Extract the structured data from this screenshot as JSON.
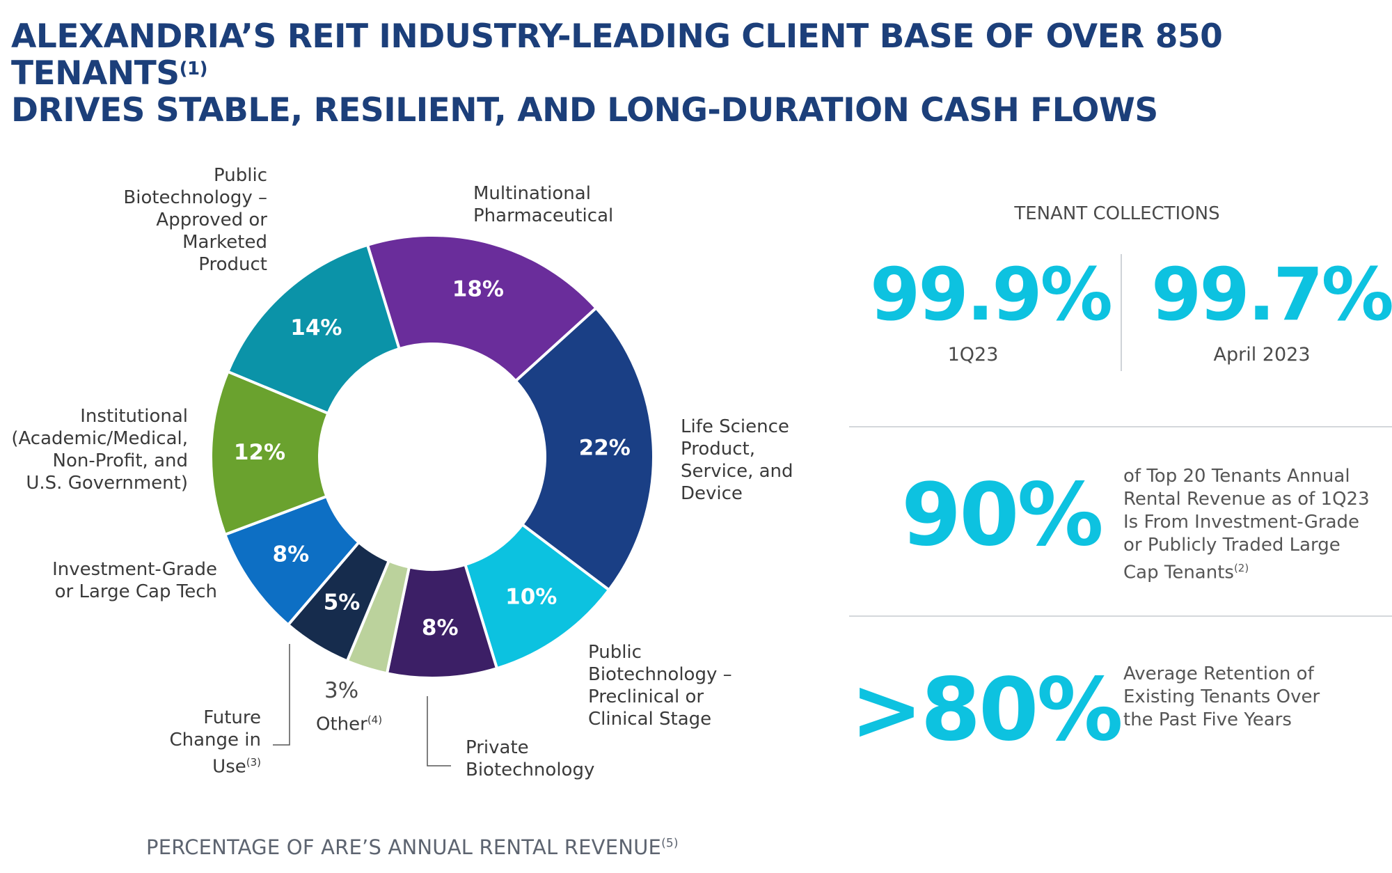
{
  "title": {
    "line1": "ALEXANDRIA’S REIT INDUSTRY-LEADING CLIENT BASE OF OVER 850 TENANTS",
    "line1_sup": "(1)",
    "line2": "DRIVES STABLE, RESILIENT, AND LONG-DURATION CASH FLOWS"
  },
  "chart_data": {
    "type": "pie",
    "title": "PERCENTAGE OF ARE’S ANNUAL RENTAL REVENUE",
    "title_sup": "(5)",
    "start_angle_deg": -17,
    "slices": [
      {
        "name": "Multinational Pharmaceutical",
        "value": 18,
        "label": "18%",
        "color": "#6a2d9b"
      },
      {
        "name": "Life Science Product, Service, and Device",
        "value": 22,
        "label": "22%",
        "color": "#1a3f85"
      },
      {
        "name": "Public Biotechnology – Preclinical or Clinical Stage",
        "value": 10,
        "label": "10%",
        "color": "#0cc2e0"
      },
      {
        "name": "Private Biotechnology",
        "value": 8,
        "label": "8%",
        "color": "#3c1f66"
      },
      {
        "name": "Other",
        "value": 3,
        "label": "3%",
        "color": "#bbd29c"
      },
      {
        "name": "Future Change in Use",
        "value": 5,
        "label": "5%",
        "color": "#162c4d"
      },
      {
        "name": "Investment-Grade or Large Cap Tech",
        "value": 8,
        "label": "8%",
        "color": "#0d6fc4"
      },
      {
        "name": "Institutional (Academic/Medical, Non-Profit, and U.S. Government)",
        "value": 12,
        "label": "12%",
        "color": "#6aa22e"
      },
      {
        "name": "Public Biotechnology – Approved or Marketed Product",
        "value": 14,
        "label": "14%",
        "color": "#0b93a8"
      }
    ]
  },
  "categories": {
    "multinational": [
      "Multinational",
      "Pharmaceutical"
    ],
    "life_science": [
      "Life Science",
      "Product,",
      "Service, and",
      "Device"
    ],
    "public_bio_preclinical": [
      "Public",
      "Biotechnology –",
      "Preclinical or",
      "Clinical Stage"
    ],
    "private_bio": [
      "Private",
      "Biotechnology"
    ],
    "other": {
      "pct": "3%",
      "label": "Other",
      "sup": "(4)"
    },
    "future_use": {
      "lines": [
        "Future",
        "Change in"
      ],
      "last": "Use",
      "sup": "(3)"
    },
    "investment_grade": [
      "Investment-Grade",
      "or Large Cap Tech"
    ],
    "institutional": [
      "Institutional",
      "(Academic/Medical,",
      "Non-Profit, and",
      "U.S. Government)"
    ],
    "public_bio_approved": [
      "Public",
      "Biotechnology –",
      "Approved or",
      "Marketed",
      "Product"
    ]
  },
  "tenant_collections": {
    "title": "TENANT COLLECTIONS",
    "q1_value": "99.9%",
    "q1_label": "1Q23",
    "april_value": "99.7%",
    "april_label": "April 2023"
  },
  "stat_top20": {
    "value": "90%",
    "desc_lines": [
      "of Top 20 Tenants Annual",
      "Rental Revenue as of 1Q23",
      "Is From Investment-Grade",
      "or Publicly Traded Large"
    ],
    "desc_last": "Cap Tenants",
    "desc_sup": "(2)"
  },
  "stat_retention": {
    "value": ">80%",
    "desc_lines": [
      "Average Retention of",
      "Existing Tenants Over",
      "the Past Five Years"
    ]
  }
}
